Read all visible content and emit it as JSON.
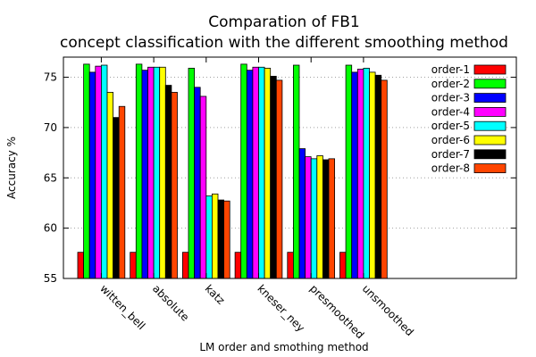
{
  "chart_data": {
    "type": "bar",
    "title": "Comparation of FB1\nconcept classification with the different smoothing method",
    "xlabel": "LM order and smothing method",
    "ylabel": "Accuracy %",
    "ylim": [
      55,
      77
    ],
    "yticks": [
      55,
      60,
      65,
      70,
      75
    ],
    "grid": true,
    "legend_position": "top-right",
    "categories": [
      "witten_bell",
      "absolute",
      "katz",
      "kneser_ney",
      "presmoothed",
      "unsmoothed"
    ],
    "series": [
      {
        "name": "order-1",
        "color": "#ff0000",
        "values": [
          57.6,
          57.6,
          57.6,
          57.6,
          57.6,
          57.6
        ]
      },
      {
        "name": "order-2",
        "color": "#00ff00",
        "values": [
          76.3,
          76.3,
          75.9,
          76.3,
          76.2,
          76.2
        ]
      },
      {
        "name": "order-3",
        "color": "#0000ff",
        "values": [
          75.5,
          75.7,
          74.0,
          75.7,
          67.9,
          75.5
        ]
      },
      {
        "name": "order-4",
        "color": "#ff00ff",
        "values": [
          76.1,
          76.0,
          73.1,
          76.0,
          67.1,
          75.8
        ]
      },
      {
        "name": "order-5",
        "color": "#00ffff",
        "values": [
          76.2,
          76.0,
          63.2,
          76.0,
          66.9,
          75.9
        ]
      },
      {
        "name": "order-6",
        "color": "#ffff00",
        "values": [
          73.5,
          76.0,
          63.4,
          75.9,
          67.2,
          75.5
        ]
      },
      {
        "name": "order-7",
        "color": "#000000",
        "values": [
          71.0,
          74.2,
          62.8,
          75.1,
          66.8,
          75.2
        ]
      },
      {
        "name": "order-8",
        "color": "#ff4500",
        "values": [
          72.1,
          73.5,
          62.7,
          74.7,
          66.9,
          74.7
        ]
      }
    ]
  }
}
